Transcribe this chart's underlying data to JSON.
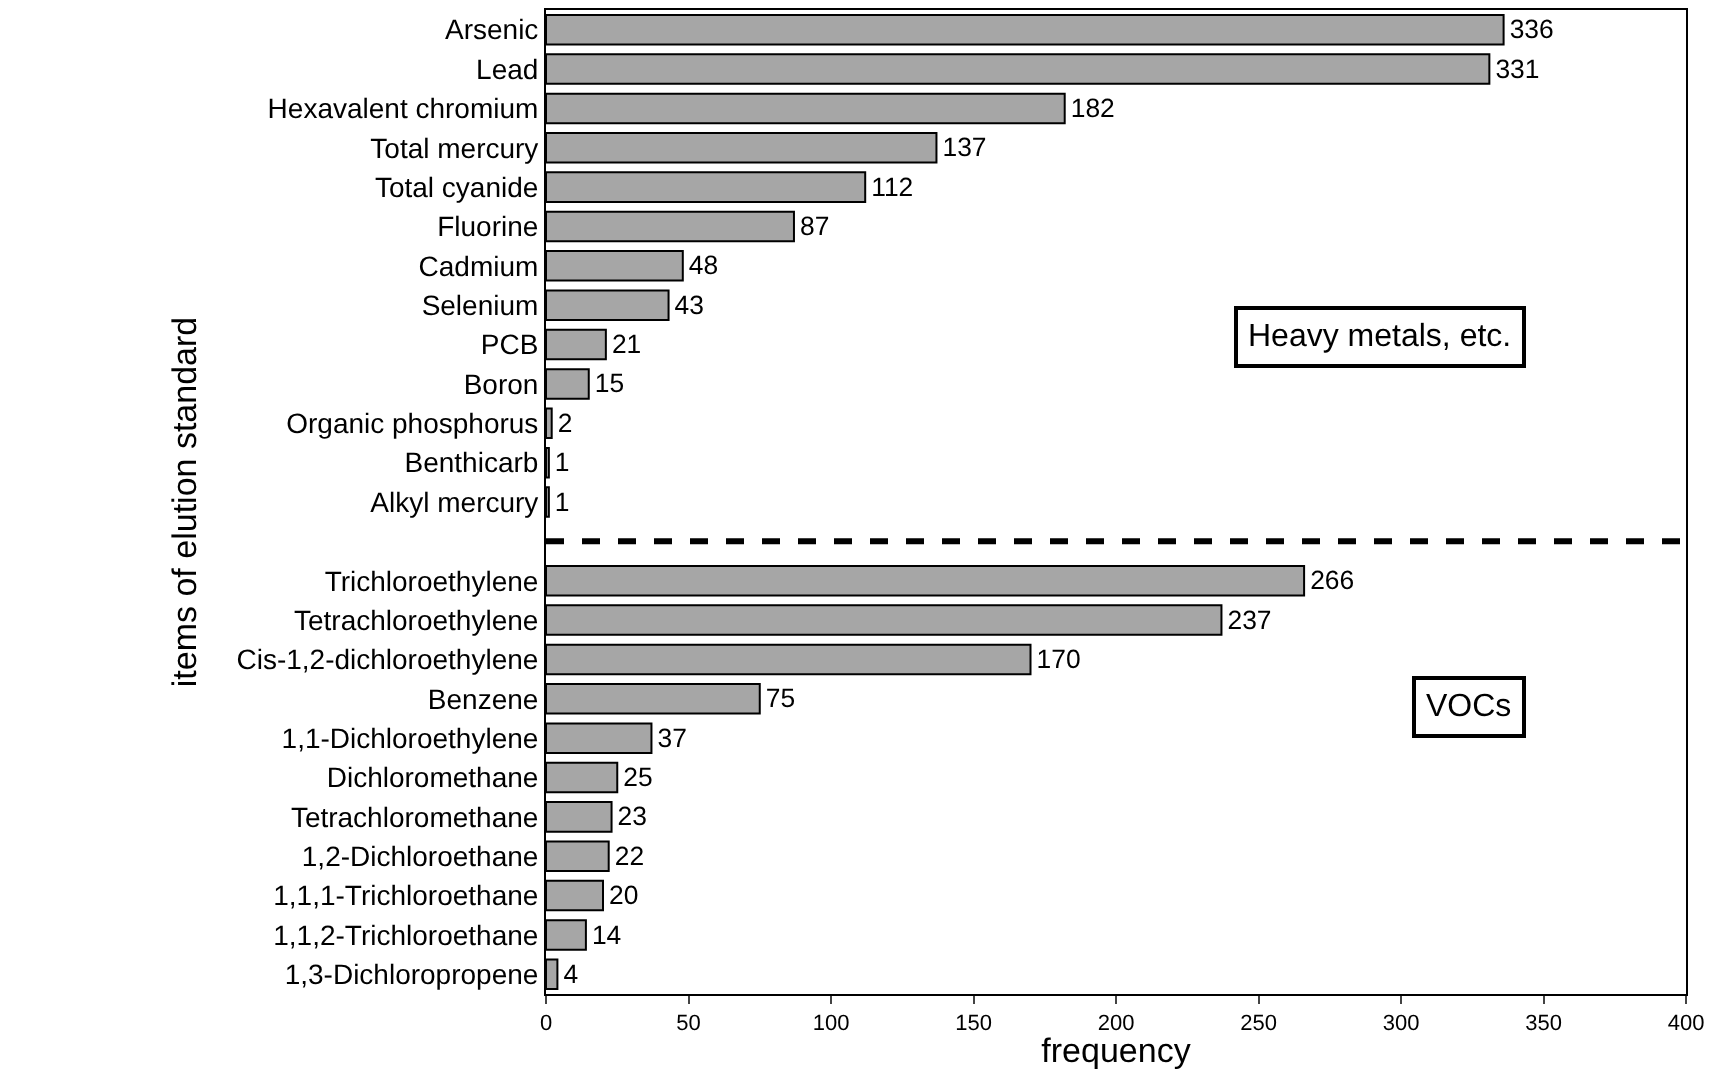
{
  "chart_data": {
    "type": "bar",
    "orientation": "horizontal",
    "xlabel": "frequency",
    "ylabel": "items of elution standard",
    "categories": [
      "Arsenic",
      "Lead",
      "Hexavalent chromium",
      "Total mercury",
      "Total cyanide",
      "Fluorine",
      "Cadmium",
      "Selenium",
      "PCB",
      "Boron",
      "Organic phosphorus",
      "Benthicarb",
      "Alkyl mercury",
      null,
      "Trichloroethylene",
      "Tetrachloroethylene",
      "Cis-1,2-dichloroethylene",
      "Benzene",
      "1,1-Dichloroethylene",
      "Dichloromethane",
      "Tetrachloromethane",
      "1,2-Dichloroethane",
      "1,1,1-Trichloroethane",
      "1,1,2-Trichloroethane",
      "1,3-Dichloropropene"
    ],
    "values": [
      336,
      331,
      182,
      137,
      112,
      87,
      48,
      43,
      21,
      15,
      2,
      1,
      1,
      null,
      266,
      237,
      170,
      75,
      37,
      25,
      23,
      22,
      20,
      14,
      4
    ],
    "color": "#a6a6a6",
    "data_labels": true,
    "xlim": [
      0,
      400
    ],
    "xticks": [
      0,
      50,
      100,
      150,
      200,
      250,
      300,
      350,
      400
    ],
    "legend": false,
    "annotations": [
      "Heavy metals, etc.",
      "VOCs"
    ]
  }
}
